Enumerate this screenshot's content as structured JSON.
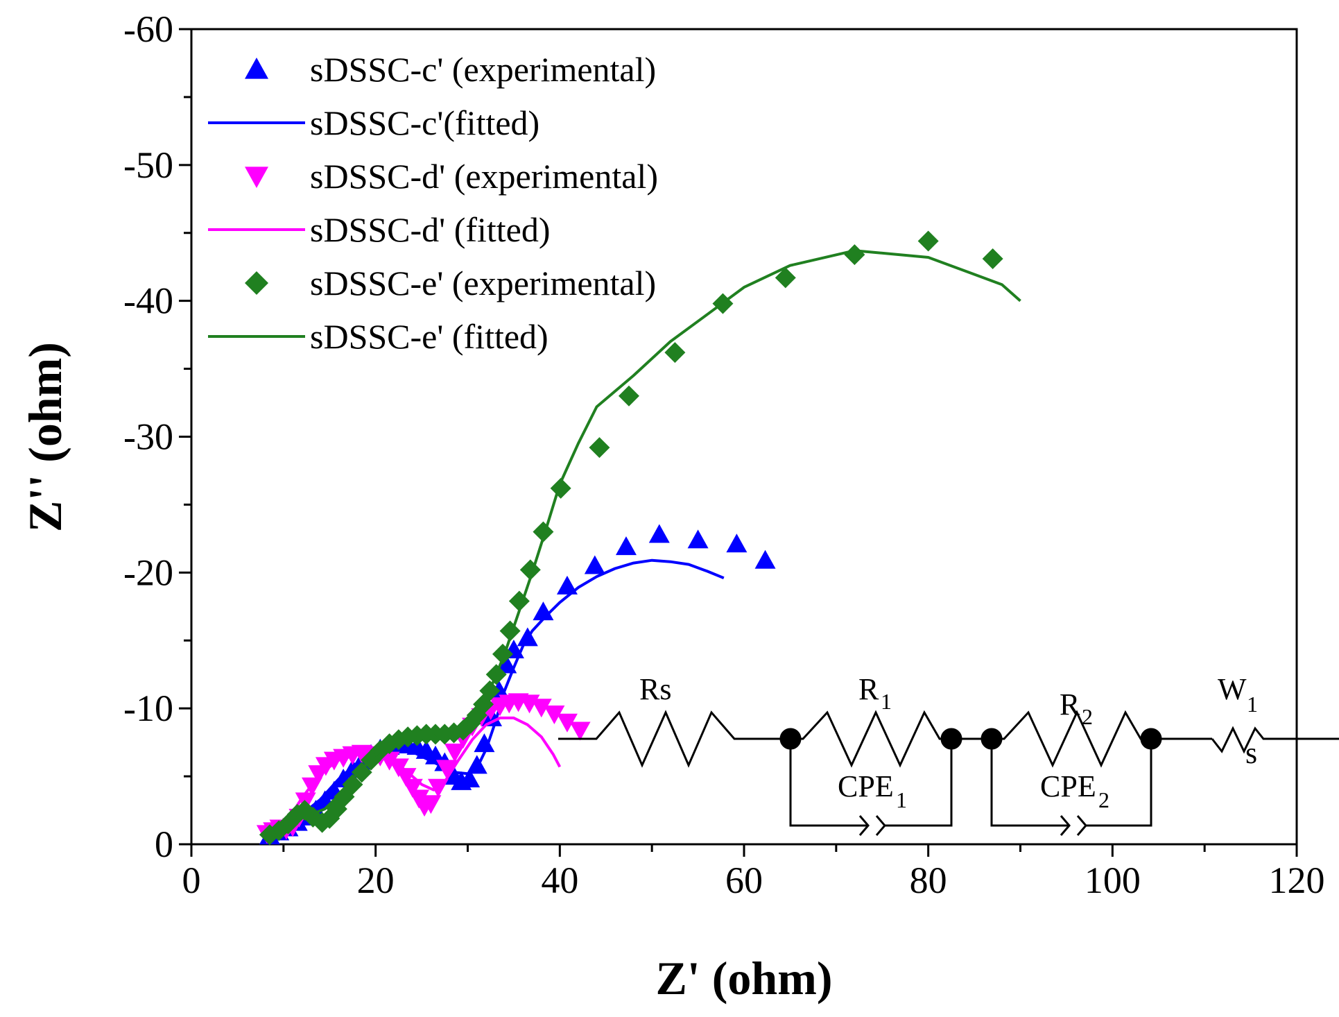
{
  "chart_data": {
    "type": "scatter",
    "title": "",
    "xlabel": "Z' (ohm)",
    "ylabel": "Z'' (ohm)",
    "xlim": [
      0,
      120
    ],
    "ylim": [
      0,
      -60
    ],
    "x_ticks": [
      "0",
      "20",
      "40",
      "60",
      "80",
      "100",
      "120"
    ],
    "y_ticks": [
      "0",
      "-10",
      "-20",
      "-30",
      "-40",
      "-50",
      "-60"
    ],
    "legend_position": "top-left",
    "series": [
      {
        "name": "sDSSC-c' (experimental)",
        "kind": "markers",
        "marker": "triangle-up",
        "color": "#0000ff",
        "points": [
          [
            8.5,
            -0.6
          ],
          [
            9.5,
            -0.9
          ],
          [
            10.5,
            -1.2
          ],
          [
            11.5,
            -1.6
          ],
          [
            12.5,
            -2.0
          ],
          [
            13.5,
            -2.5
          ],
          [
            14.5,
            -3.2
          ],
          [
            15.5,
            -3.9
          ],
          [
            16.5,
            -4.8
          ],
          [
            17.5,
            -5.5
          ],
          [
            18.5,
            -6.1
          ],
          [
            19.5,
            -6.6
          ],
          [
            20.5,
            -7.0
          ],
          [
            21.5,
            -7.2
          ],
          [
            22.5,
            -7.3
          ],
          [
            23.5,
            -7.3
          ],
          [
            24.5,
            -7.2
          ],
          [
            25.5,
            -6.9
          ],
          [
            26.5,
            -6.5
          ],
          [
            27.5,
            -6.0
          ],
          [
            28.5,
            -5.0
          ],
          [
            29.3,
            -4.6
          ],
          [
            30.2,
            -4.8
          ],
          [
            31.0,
            -5.8
          ],
          [
            31.8,
            -7.4
          ],
          [
            32.6,
            -9.3
          ],
          [
            33.4,
            -11.3
          ],
          [
            34.2,
            -13.2
          ],
          [
            35.0,
            -14.3
          ],
          [
            36.5,
            -15.2
          ],
          [
            38.2,
            -17.1
          ],
          [
            40.8,
            -19.0
          ],
          [
            43.8,
            -20.5
          ],
          [
            47.2,
            -21.9
          ],
          [
            50.8,
            -22.8
          ],
          [
            55.0,
            -22.4
          ],
          [
            59.2,
            -22.1
          ],
          [
            62.3,
            -20.9
          ]
        ]
      },
      {
        "name": "sDSSC-c'(fitted)",
        "kind": "line",
        "color": "#0000ff",
        "points": [
          [
            8.5,
            -0.5
          ],
          [
            10,
            -1.2
          ],
          [
            12,
            -2.2
          ],
          [
            14,
            -3.3
          ],
          [
            16,
            -4.8
          ],
          [
            18,
            -6.0
          ],
          [
            20,
            -6.8
          ],
          [
            22,
            -7.0
          ],
          [
            24,
            -6.8
          ],
          [
            25.5,
            -6.3
          ],
          [
            27,
            -5.8
          ],
          [
            28.5,
            -5.3
          ],
          [
            30,
            -5.2
          ],
          [
            31,
            -5.6
          ],
          [
            32,
            -7.0
          ],
          [
            33,
            -9.0
          ],
          [
            34,
            -11.3
          ],
          [
            35,
            -13.0
          ],
          [
            36,
            -14.6
          ],
          [
            37,
            -15.7
          ],
          [
            38.5,
            -16.8
          ],
          [
            40,
            -17.8
          ],
          [
            42,
            -18.9
          ],
          [
            44,
            -19.7
          ],
          [
            46,
            -20.3
          ],
          [
            48,
            -20.7
          ],
          [
            50,
            -20.9
          ],
          [
            52,
            -20.8
          ],
          [
            54,
            -20.6
          ],
          [
            56,
            -20.1
          ],
          [
            57.8,
            -19.6
          ]
        ]
      },
      {
        "name": "sDSSC-d' (experimental)",
        "kind": "markers",
        "marker": "triangle-down",
        "color": "#ff00ff",
        "points": [
          [
            8.2,
            -0.8
          ],
          [
            8.9,
            -1.0
          ],
          [
            9.6,
            -1.2
          ],
          [
            10.3,
            -1.1
          ],
          [
            11.0,
            -1.3
          ],
          [
            11.7,
            -2.0
          ],
          [
            12.4,
            -3.2
          ],
          [
            13.1,
            -4.3
          ],
          [
            13.8,
            -5.2
          ],
          [
            14.6,
            -5.8
          ],
          [
            15.5,
            -6.2
          ],
          [
            16.5,
            -6.4
          ],
          [
            17.5,
            -6.6
          ],
          [
            18.5,
            -6.7
          ],
          [
            19.5,
            -6.6
          ],
          [
            20.5,
            -6.5
          ],
          [
            21.5,
            -6.2
          ],
          [
            22.5,
            -5.7
          ],
          [
            23.3,
            -5.0
          ],
          [
            24.0,
            -4.2
          ],
          [
            24.7,
            -3.4
          ],
          [
            25.3,
            -2.8
          ],
          [
            26.0,
            -3.0
          ],
          [
            26.8,
            -4.2
          ],
          [
            27.7,
            -5.6
          ],
          [
            28.6,
            -6.8
          ],
          [
            29.5,
            -7.8
          ],
          [
            30.5,
            -8.7
          ],
          [
            31.5,
            -9.4
          ],
          [
            32.5,
            -9.9
          ],
          [
            33.5,
            -10.2
          ],
          [
            34.5,
            -10.4
          ],
          [
            35.5,
            -10.5
          ],
          [
            36.7,
            -10.4
          ],
          [
            38.0,
            -10.1
          ],
          [
            39.4,
            -9.6
          ],
          [
            40.8,
            -9.0
          ],
          [
            42.2,
            -8.4
          ]
        ]
      },
      {
        "name": "sDSSC-d' (fitted)",
        "kind": "line",
        "color": "#ff00ff",
        "points": [
          [
            8.2,
            -0.6
          ],
          [
            10,
            -1.3
          ],
          [
            12,
            -3.4
          ],
          [
            14,
            -5.2
          ],
          [
            16,
            -6.2
          ],
          [
            18,
            -6.6
          ],
          [
            20,
            -6.6
          ],
          [
            22,
            -6.1
          ],
          [
            23.5,
            -5.3
          ],
          [
            25,
            -4.4
          ],
          [
            26.3,
            -4.0
          ],
          [
            27.5,
            -4.6
          ],
          [
            29,
            -6.2
          ],
          [
            30.5,
            -7.7
          ],
          [
            32,
            -8.8
          ],
          [
            33.5,
            -9.3
          ],
          [
            35,
            -9.3
          ],
          [
            36.5,
            -8.8
          ],
          [
            38,
            -7.9
          ],
          [
            39.3,
            -6.6
          ],
          [
            40,
            -5.7
          ]
        ]
      },
      {
        "name": "sDSSC-e' (experimental)",
        "kind": "markers",
        "marker": "diamond",
        "color": "#208020",
        "points": [
          [
            8.5,
            -0.7
          ],
          [
            9.5,
            -1.0
          ],
          [
            10.5,
            -1.5
          ],
          [
            11.5,
            -2.2
          ],
          [
            12.3,
            -2.5
          ],
          [
            13.2,
            -2.0
          ],
          [
            14.2,
            -1.6
          ],
          [
            15.0,
            -1.9
          ],
          [
            15.8,
            -2.6
          ],
          [
            16.6,
            -3.5
          ],
          [
            17.5,
            -4.4
          ],
          [
            18.5,
            -5.3
          ],
          [
            19.5,
            -6.2
          ],
          [
            20.5,
            -6.9
          ],
          [
            21.5,
            -7.4
          ],
          [
            22.5,
            -7.7
          ],
          [
            23.5,
            -7.9
          ],
          [
            24.5,
            -8.0
          ],
          [
            25.5,
            -8.1
          ],
          [
            26.5,
            -8.1
          ],
          [
            27.5,
            -8.1
          ],
          [
            28.5,
            -8.2
          ],
          [
            29.5,
            -8.4
          ],
          [
            30.3,
            -8.9
          ],
          [
            31.0,
            -9.5
          ],
          [
            31.7,
            -10.3
          ],
          [
            32.4,
            -11.3
          ],
          [
            33.1,
            -12.5
          ],
          [
            33.8,
            -14.0
          ],
          [
            34.6,
            -15.7
          ],
          [
            35.6,
            -17.9
          ],
          [
            36.8,
            -20.2
          ],
          [
            38.2,
            -23.0
          ],
          [
            40.1,
            -26.2
          ],
          [
            44.3,
            -29.2
          ],
          [
            47.5,
            -33.0
          ],
          [
            52.5,
            -36.2
          ],
          [
            57.7,
            -39.8
          ],
          [
            64.5,
            -41.7
          ],
          [
            72.0,
            -43.4
          ],
          [
            80.0,
            -44.4
          ],
          [
            87.0,
            -43.1
          ]
        ]
      },
      {
        "name": "sDSSC-e' (fitted)",
        "kind": "line",
        "color": "#208020",
        "points": [
          [
            8.5,
            -0.6
          ],
          [
            10,
            -1.3
          ],
          [
            11.5,
            -2.0
          ],
          [
            13,
            -2.2
          ],
          [
            14.5,
            -2.6
          ],
          [
            16,
            -3.6
          ],
          [
            18,
            -5.2
          ],
          [
            20,
            -6.6
          ],
          [
            22,
            -7.5
          ],
          [
            24,
            -8.0
          ],
          [
            26,
            -8.2
          ],
          [
            28,
            -8.3
          ],
          [
            29.5,
            -8.6
          ],
          [
            31,
            -9.5
          ],
          [
            32.5,
            -11.5
          ],
          [
            34,
            -14.0
          ],
          [
            35.5,
            -17.0
          ],
          [
            37,
            -20.0
          ],
          [
            38.5,
            -23.2
          ],
          [
            40,
            -26.5
          ],
          [
            42,
            -29.5
          ],
          [
            44,
            -32.2
          ],
          [
            48,
            -34.5
          ],
          [
            52,
            -37.0
          ],
          [
            56,
            -39.0
          ],
          [
            60,
            -41.0
          ],
          [
            65,
            -42.6
          ],
          [
            72,
            -43.7
          ],
          [
            80,
            -43.2
          ],
          [
            88,
            -41.2
          ],
          [
            90,
            -40.0
          ]
        ]
      }
    ],
    "inset_circuit": {
      "labels": {
        "rs": "Rs",
        "r1": "R",
        "r1_sub": "1",
        "r2": "R",
        "r2_sub": "2",
        "w1": "W",
        "w1_sub": "1",
        "ws": "s",
        "cpe1": "CPE",
        "cpe1_sub": "1",
        "cpe2": "CPE",
        "cpe2_sub": "2"
      }
    }
  }
}
